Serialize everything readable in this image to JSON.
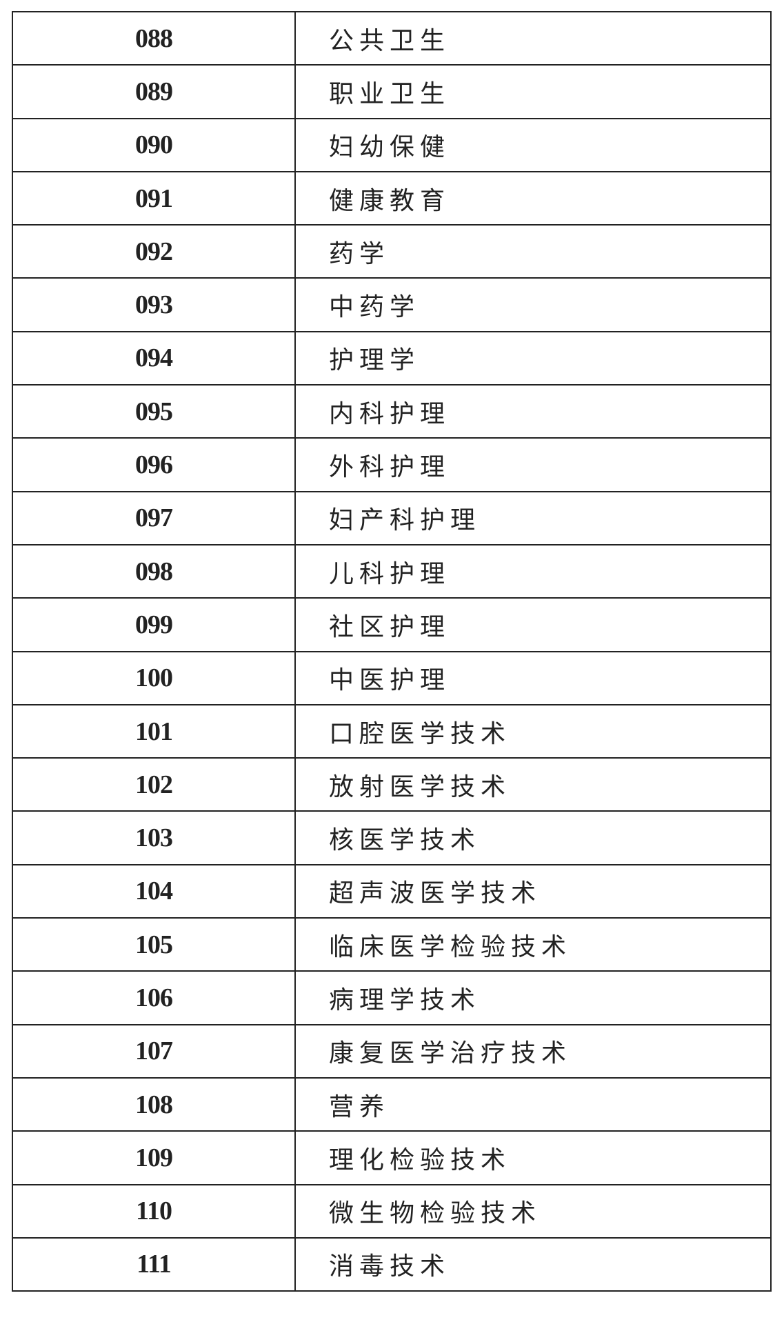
{
  "rows": [
    {
      "code": "088",
      "name": "公共卫生"
    },
    {
      "code": "089",
      "name": "职业卫生"
    },
    {
      "code": "090",
      "name": "妇幼保健"
    },
    {
      "code": "091",
      "name": "健康教育"
    },
    {
      "code": "092",
      "name": "药学"
    },
    {
      "code": "093",
      "name": "中药学"
    },
    {
      "code": "094",
      "name": "护理学"
    },
    {
      "code": "095",
      "name": "内科护理"
    },
    {
      "code": "096",
      "name": "外科护理"
    },
    {
      "code": "097",
      "name": "妇产科护理"
    },
    {
      "code": "098",
      "name": "儿科护理"
    },
    {
      "code": "099",
      "name": "社区护理"
    },
    {
      "code": "100",
      "name": "中医护理"
    },
    {
      "code": "101",
      "name": "口腔医学技术"
    },
    {
      "code": "102",
      "name": "放射医学技术"
    },
    {
      "code": "103",
      "name": "核医学技术"
    },
    {
      "code": "104",
      "name": "超声波医学技术"
    },
    {
      "code": "105",
      "name": "临床医学检验技术"
    },
    {
      "code": "106",
      "name": "病理学技术"
    },
    {
      "code": "107",
      "name": "康复医学治疗技术"
    },
    {
      "code": "108",
      "name": "营养"
    },
    {
      "code": "109",
      "name": "理化检验技术"
    },
    {
      "code": "110",
      "name": "微生物检验技术"
    },
    {
      "code": "111",
      "name": "消毒技术"
    }
  ]
}
